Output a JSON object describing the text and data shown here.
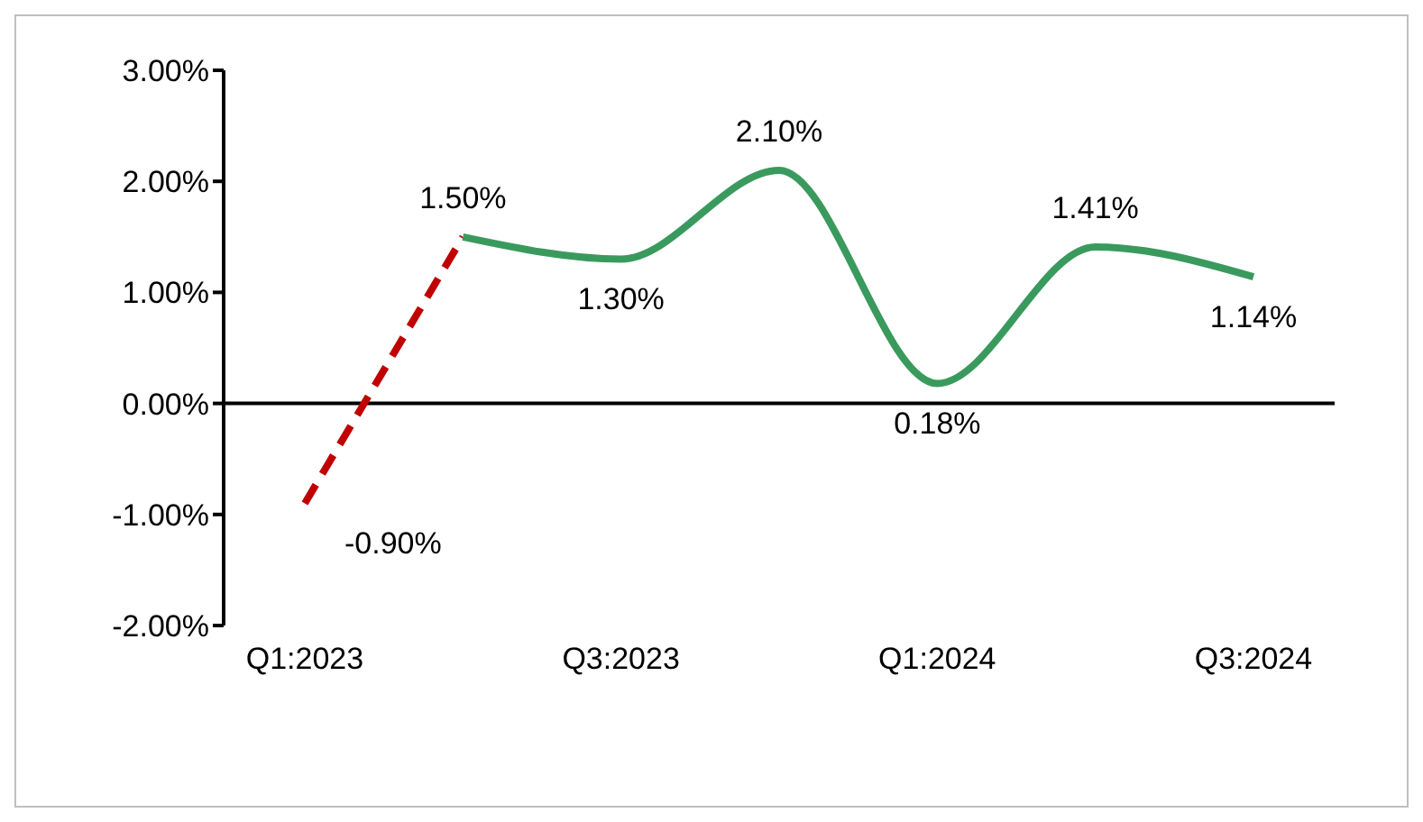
{
  "chart_data": {
    "type": "line",
    "categories": [
      "Q1:2023",
      null,
      "Q3:2023",
      null,
      "Q1:2024",
      null,
      "Q3:2024"
    ],
    "series": [
      {
        "color": "#c00000",
        "line_style": "dashed",
        "values": [
          -0.9,
          1.5,
          null,
          null,
          null,
          null,
          null
        ],
        "value_labels": [
          "-0.90%",
          null,
          null,
          null,
          null,
          null,
          null
        ]
      },
      {
        "color": "#3a9a5e",
        "line_style": "solid",
        "values": [
          null,
          1.5,
          1.3,
          2.1,
          0.18,
          1.41,
          1.14
        ],
        "value_labels": [
          null,
          "1.50%",
          "1.30%",
          "2.10%",
          "0.18%",
          "1.41%",
          "1.14%"
        ]
      }
    ],
    "ylim": [
      -2,
      3
    ],
    "yticks": [
      {
        "value": -2,
        "label": "-2.00%"
      },
      {
        "value": -1,
        "label": "-1.00%"
      },
      {
        "value": 0,
        "label": "0.00%"
      },
      {
        "value": 1,
        "label": "1.00%"
      },
      {
        "value": 2,
        "label": "2.00%"
      },
      {
        "value": 3,
        "label": "3.00%"
      }
    ],
    "marker": "none"
  }
}
